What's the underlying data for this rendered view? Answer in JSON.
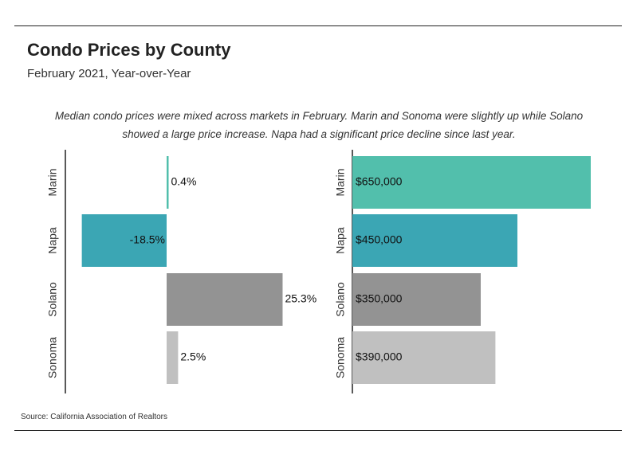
{
  "header": {
    "title": "Condo Prices by County",
    "subtitle": "February 2021, Year-over-Year"
  },
  "description": "Median condo prices were mixed across markets in February. Marin and Sonoma were slightly up while Solano showed a large price increase. Napa had a significant price decline since last year.",
  "source": "Source:  California Association of Realtors",
  "chart_data": [
    {
      "type": "bar",
      "orientation": "horizontal",
      "categories": [
        "Marin",
        "Napa",
        "Solano",
        "Sonoma"
      ],
      "values": [
        0.4,
        -18.5,
        25.3,
        2.5
      ],
      "value_labels": [
        "0.4%",
        "-18.5%",
        "25.3%",
        "2.5%"
      ],
      "colors": [
        "#52bfac",
        "#3ba6b4",
        "#939393",
        "#c0c0c0"
      ],
      "xlim": [
        -20,
        27
      ],
      "unit": "%"
    },
    {
      "type": "bar",
      "orientation": "horizontal",
      "categories": [
        "Marin",
        "Napa",
        "Solano",
        "Sonoma"
      ],
      "values": [
        650000,
        450000,
        350000,
        390000
      ],
      "value_labels": [
        "$650,000",
        "$450,000",
        "$350,000",
        "$390,000"
      ],
      "colors": [
        "#52bfac",
        "#3ba6b4",
        "#939393",
        "#c0c0c0"
      ],
      "xlim": [
        0,
        650000
      ],
      "unit": "$"
    }
  ]
}
